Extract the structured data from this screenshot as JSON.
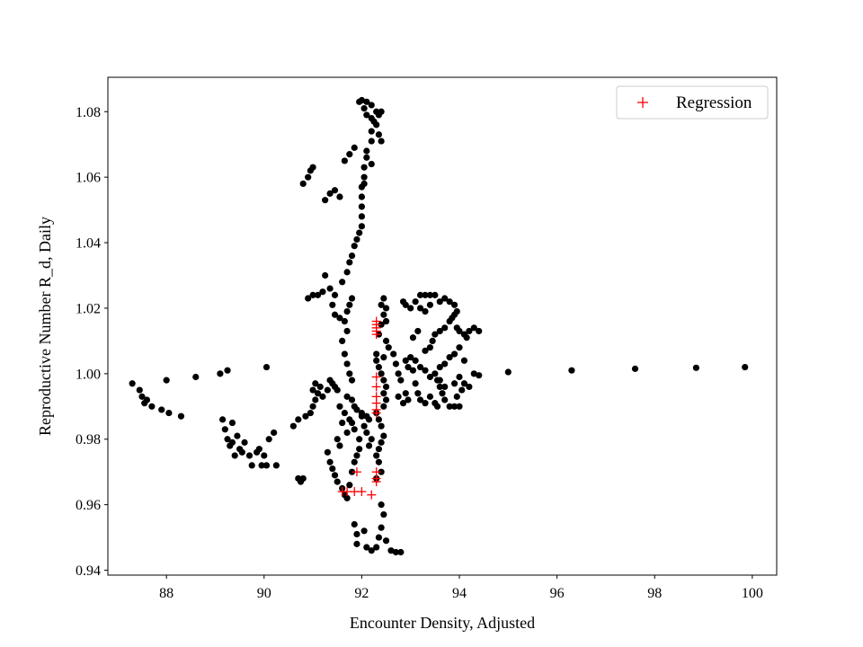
{
  "chart_data": {
    "type": "scatter",
    "title": "",
    "xlabel": "Encounter Density, Adjusted",
    "ylabel": "Reproductive Number R_d, Daily",
    "xlim": [
      86.8,
      100.5
    ],
    "ylim": [
      0.9385,
      1.0905
    ],
    "xticks": [
      88,
      90,
      92,
      94,
      96,
      98,
      100
    ],
    "xtick_labels": [
      "88",
      "90",
      "92",
      "94",
      "96",
      "98",
      "100"
    ],
    "yticks": [
      0.94,
      0.96,
      0.98,
      1.0,
      1.02,
      1.04,
      1.06,
      1.08
    ],
    "ytick_labels": [
      "0.94",
      "0.96",
      "0.98",
      "1.00",
      "1.02",
      "1.04",
      "1.06",
      "1.08"
    ],
    "grid": false,
    "legend_position": "top-right",
    "colors": {
      "observed": "#000000",
      "regression": "#ff0000"
    },
    "series": [
      {
        "marker": "circle",
        "color": "#000000",
        "points": [
          [
            87.3,
            0.997
          ],
          [
            87.45,
            0.995
          ],
          [
            87.5,
            0.993
          ],
          [
            87.55,
            0.991
          ],
          [
            87.6,
            0.992
          ],
          [
            87.7,
            0.99
          ],
          [
            87.9,
            0.989
          ],
          [
            88.0,
            0.998
          ],
          [
            88.05,
            0.988
          ],
          [
            88.3,
            0.987
          ],
          [
            88.6,
            0.999
          ],
          [
            89.1,
            1.0
          ],
          [
            89.25,
            1.001
          ],
          [
            90.05,
            1.002
          ],
          [
            95.0,
            1.0005
          ],
          [
            96.3,
            1.001
          ],
          [
            97.6,
            1.0015
          ],
          [
            98.85,
            1.0018
          ],
          [
            99.85,
            1.002
          ],
          [
            89.15,
            0.986
          ],
          [
            89.2,
            0.983
          ],
          [
            89.25,
            0.98
          ],
          [
            89.3,
            0.978
          ],
          [
            89.35,
            0.985
          ],
          [
            89.4,
            0.975
          ],
          [
            89.45,
            0.981
          ],
          [
            89.55,
            0.976
          ],
          [
            89.6,
            0.979
          ],
          [
            89.7,
            0.975
          ],
          [
            89.75,
            0.972
          ],
          [
            89.85,
            0.976
          ],
          [
            89.9,
            0.977
          ],
          [
            90.0,
            0.975
          ],
          [
            90.05,
            0.972
          ],
          [
            90.1,
            0.98
          ],
          [
            90.2,
            0.982
          ],
          [
            90.25,
            0.972
          ],
          [
            89.95,
            0.972
          ],
          [
            89.5,
            0.977
          ],
          [
            89.35,
            0.979
          ],
          [
            90.7,
            0.968
          ],
          [
            90.75,
            0.967
          ],
          [
            90.8,
            0.968
          ],
          [
            90.6,
            0.984
          ],
          [
            90.7,
            0.986
          ],
          [
            90.85,
            0.987
          ],
          [
            90.95,
            0.988
          ],
          [
            91.0,
            0.99
          ],
          [
            91.05,
            0.992
          ],
          [
            91.0,
            0.995
          ],
          [
            91.05,
            0.997
          ],
          [
            91.1,
            0.994
          ],
          [
            91.15,
            0.996
          ],
          [
            91.2,
            0.993
          ],
          [
            91.3,
            0.995
          ],
          [
            91.35,
            0.998
          ],
          [
            91.4,
            0.997
          ],
          [
            91.45,
            0.996
          ],
          [
            91.5,
            0.995
          ],
          [
            91.55,
            0.99
          ],
          [
            91.6,
            0.985
          ],
          [
            91.65,
            0.988
          ],
          [
            91.7,
            0.982
          ],
          [
            91.75,
            0.986
          ],
          [
            91.8,
            0.985
          ],
          [
            91.85,
            0.983
          ],
          [
            91.95,
            0.98
          ],
          [
            92.0,
            0.987
          ],
          [
            92.05,
            0.984
          ],
          [
            92.1,
            0.982
          ],
          [
            92.15,
            0.978
          ],
          [
            92.2,
            0.98
          ],
          [
            91.85,
            0.99
          ],
          [
            91.9,
            0.989
          ],
          [
            92.0,
            0.988
          ],
          [
            92.1,
            0.987
          ],
          [
            92.15,
            0.986
          ],
          [
            91.8,
            0.992
          ],
          [
            91.7,
            0.993
          ],
          [
            91.3,
            0.976
          ],
          [
            91.35,
            0.973
          ],
          [
            91.4,
            0.971
          ],
          [
            91.45,
            0.969
          ],
          [
            91.5,
            0.967
          ],
          [
            91.6,
            0.965
          ],
          [
            91.65,
            0.963
          ],
          [
            91.7,
            0.962
          ],
          [
            91.75,
            0.966
          ],
          [
            91.8,
            0.97
          ],
          [
            91.85,
            0.973
          ],
          [
            91.9,
            0.975
          ],
          [
            91.95,
            0.977
          ],
          [
            91.5,
            0.98
          ],
          [
            91.55,
            0.978
          ],
          [
            91.85,
            0.954
          ],
          [
            91.9,
            0.951
          ],
          [
            91.9,
            0.948
          ],
          [
            92.05,
            0.952
          ],
          [
            92.1,
            0.947
          ],
          [
            92.2,
            0.946
          ],
          [
            92.3,
            0.947
          ],
          [
            92.35,
            0.95
          ],
          [
            92.4,
            0.953
          ],
          [
            92.45,
            0.957
          ],
          [
            92.4,
            0.96
          ],
          [
            92.5,
            0.949
          ],
          [
            92.6,
            0.946
          ],
          [
            92.7,
            0.9455
          ],
          [
            92.8,
            0.9455
          ],
          [
            92.3,
            0.975
          ],
          [
            92.35,
            0.977
          ],
          [
            92.4,
            0.979
          ],
          [
            92.45,
            0.981
          ],
          [
            92.4,
            0.984
          ],
          [
            92.35,
            0.986
          ],
          [
            92.3,
            0.988
          ],
          [
            92.35,
            0.973
          ],
          [
            92.4,
            0.97
          ],
          [
            92.3,
            0.968
          ],
          [
            92.45,
            0.99
          ],
          [
            92.5,
            0.992
          ],
          [
            92.45,
            0.994
          ],
          [
            92.5,
            0.996
          ],
          [
            92.45,
            0.998
          ],
          [
            92.4,
            1.0
          ],
          [
            92.35,
            1.002
          ],
          [
            92.3,
            1.004
          ],
          [
            92.3,
            1.006
          ],
          [
            92.35,
            1.012
          ],
          [
            92.4,
            1.015
          ],
          [
            92.45,
            1.018
          ],
          [
            92.5,
            1.02
          ],
          [
            92.5,
            1.016
          ],
          [
            92.5,
            1.01
          ],
          [
            92.55,
            1.008
          ],
          [
            92.45,
            1.005
          ],
          [
            92.4,
            1.021
          ],
          [
            92.45,
            1.023
          ],
          [
            91.6,
            1.01
          ],
          [
            91.65,
            1.006
          ],
          [
            91.7,
            1.003
          ],
          [
            91.75,
            1.0
          ],
          [
            91.8,
            0.998
          ],
          [
            91.7,
            1.013
          ],
          [
            91.65,
            1.016
          ],
          [
            91.7,
            1.019
          ],
          [
            91.75,
            1.021
          ],
          [
            91.8,
            1.023
          ],
          [
            91.55,
            1.017
          ],
          [
            91.45,
            1.018
          ],
          [
            91.4,
            1.021
          ],
          [
            91.45,
            1.024
          ],
          [
            91.35,
            1.026
          ],
          [
            91.2,
            1.025
          ],
          [
            91.1,
            1.024
          ],
          [
            91.0,
            1.024
          ],
          [
            90.9,
            1.023
          ],
          [
            91.25,
            1.03
          ],
          [
            91.6,
            1.028
          ],
          [
            91.7,
            1.031
          ],
          [
            91.75,
            1.034
          ],
          [
            91.8,
            1.036
          ],
          [
            91.85,
            1.039
          ],
          [
            91.9,
            1.041
          ],
          [
            91.95,
            1.043
          ],
          [
            92.0,
            1.045
          ],
          [
            92.0,
            1.048
          ],
          [
            92.0,
            1.051
          ],
          [
            92.0,
            1.054
          ],
          [
            92.0,
            1.057
          ],
          [
            92.05,
            1.06
          ],
          [
            92.05,
            1.063
          ],
          [
            92.1,
            1.066
          ],
          [
            92.1,
            1.068
          ],
          [
            92.2,
            1.071
          ],
          [
            92.2,
            1.074
          ],
          [
            92.25,
            1.077
          ],
          [
            92.3,
            1.08
          ],
          [
            92.2,
            1.082
          ],
          [
            92.1,
            1.083
          ],
          [
            92.0,
            1.0835
          ],
          [
            91.95,
            1.083
          ],
          [
            92.05,
            1.081
          ],
          [
            92.1,
            1.079
          ],
          [
            92.2,
            1.078
          ],
          [
            92.3,
            1.076
          ],
          [
            92.35,
            1.073
          ],
          [
            92.4,
            1.071
          ],
          [
            92.35,
            1.079
          ],
          [
            92.4,
            1.08
          ],
          [
            92.2,
            1.064
          ],
          [
            92.05,
            1.058
          ],
          [
            91.65,
            1.065
          ],
          [
            91.75,
            1.067
          ],
          [
            91.85,
            1.069
          ],
          [
            91.55,
            1.054
          ],
          [
            91.45,
            1.056
          ],
          [
            91.35,
            1.055
          ],
          [
            91.25,
            1.053
          ],
          [
            90.8,
            1.058
          ],
          [
            90.9,
            1.06
          ],
          [
            90.95,
            1.062
          ],
          [
            91.0,
            1.063
          ],
          [
            92.65,
            1.006
          ],
          [
            92.7,
            1.003
          ],
          [
            92.75,
            1.0
          ],
          [
            92.8,
            0.998
          ],
          [
            92.9,
            1.004
          ],
          [
            93.0,
            1.005
          ],
          [
            93.1,
            1.004
          ],
          [
            93.2,
            1.002
          ],
          [
            93.05,
            1.001
          ],
          [
            92.95,
            1.002
          ],
          [
            93.3,
            1.001
          ],
          [
            93.4,
            0.999
          ],
          [
            93.5,
            1.0
          ],
          [
            93.55,
            0.998
          ],
          [
            93.6,
            0.996
          ],
          [
            93.65,
            0.994
          ],
          [
            93.7,
            0.992
          ],
          [
            93.8,
            0.99
          ],
          [
            93.9,
            0.99
          ],
          [
            94.0,
            0.99
          ],
          [
            93.1,
            0.997
          ],
          [
            93.15,
            0.994
          ],
          [
            93.2,
            0.992
          ],
          [
            93.3,
            0.991
          ],
          [
            93.4,
            0.993
          ],
          [
            93.5,
            0.991
          ],
          [
            93.55,
            0.99
          ],
          [
            93.6,
            0.998
          ],
          [
            93.7,
            0.996
          ],
          [
            92.95,
            0.992
          ],
          [
            92.85,
            0.991
          ],
          [
            92.9,
            0.994
          ],
          [
            92.75,
            0.993
          ],
          [
            93.05,
            1.011
          ],
          [
            93.15,
            1.013
          ],
          [
            93.3,
            1.007
          ],
          [
            93.4,
            1.008
          ],
          [
            93.45,
            1.01
          ],
          [
            93.5,
            1.012
          ],
          [
            93.6,
            1.013
          ],
          [
            93.7,
            1.014
          ],
          [
            93.8,
            1.016
          ],
          [
            93.9,
            1.018
          ],
          [
            93.95,
            1.014
          ],
          [
            94.0,
            1.013
          ],
          [
            94.1,
            1.012
          ],
          [
            94.15,
            1.011
          ],
          [
            94.2,
            1.013
          ],
          [
            94.3,
            1.014
          ],
          [
            94.4,
            1.013
          ],
          [
            94.0,
            1.008
          ],
          [
            93.9,
            1.006
          ],
          [
            93.8,
            1.005
          ],
          [
            93.7,
            1.003
          ],
          [
            93.6,
            1.002
          ],
          [
            94.1,
            1.004
          ],
          [
            94.0,
            0.999
          ],
          [
            94.3,
            1.0
          ],
          [
            93.9,
            0.997
          ],
          [
            94.1,
            0.997
          ],
          [
            94.05,
            0.995
          ],
          [
            93.95,
            0.993
          ],
          [
            94.2,
            0.996
          ],
          [
            92.85,
            1.022
          ],
          [
            92.9,
            1.021
          ],
          [
            93.0,
            1.02
          ],
          [
            93.1,
            1.022
          ],
          [
            93.2,
            1.024
          ],
          [
            93.3,
            1.024
          ],
          [
            93.4,
            1.024
          ],
          [
            93.5,
            1.024
          ],
          [
            93.6,
            1.022
          ],
          [
            93.7,
            1.023
          ],
          [
            93.8,
            1.022
          ],
          [
            93.9,
            1.021
          ],
          [
            93.95,
            1.019
          ],
          [
            93.85,
            1.017
          ],
          [
            93.4,
            1.021
          ],
          [
            93.3,
            1.019
          ],
          [
            93.2,
            1.02
          ],
          [
            94.4,
            0.9995
          ]
        ]
      },
      {
        "name": "Regression",
        "marker": "plus",
        "color": "#ff0000",
        "points": [
          [
            92.3,
            1.016
          ],
          [
            92.3,
            1.015
          ],
          [
            92.3,
            1.014
          ],
          [
            92.3,
            1.013
          ],
          [
            92.3,
            1.012
          ],
          [
            92.3,
            0.999
          ],
          [
            92.3,
            0.996
          ],
          [
            92.3,
            0.993
          ],
          [
            92.3,
            0.991
          ],
          [
            92.3,
            0.989
          ],
          [
            92.3,
            0.988
          ],
          [
            92.3,
            0.97
          ],
          [
            92.3,
            0.968
          ],
          [
            92.3,
            0.967
          ],
          [
            92.2,
            0.963
          ],
          [
            91.6,
            0.964
          ],
          [
            91.7,
            0.964
          ],
          [
            91.85,
            0.964
          ],
          [
            92.0,
            0.964
          ],
          [
            91.9,
            0.97
          ]
        ]
      }
    ]
  }
}
